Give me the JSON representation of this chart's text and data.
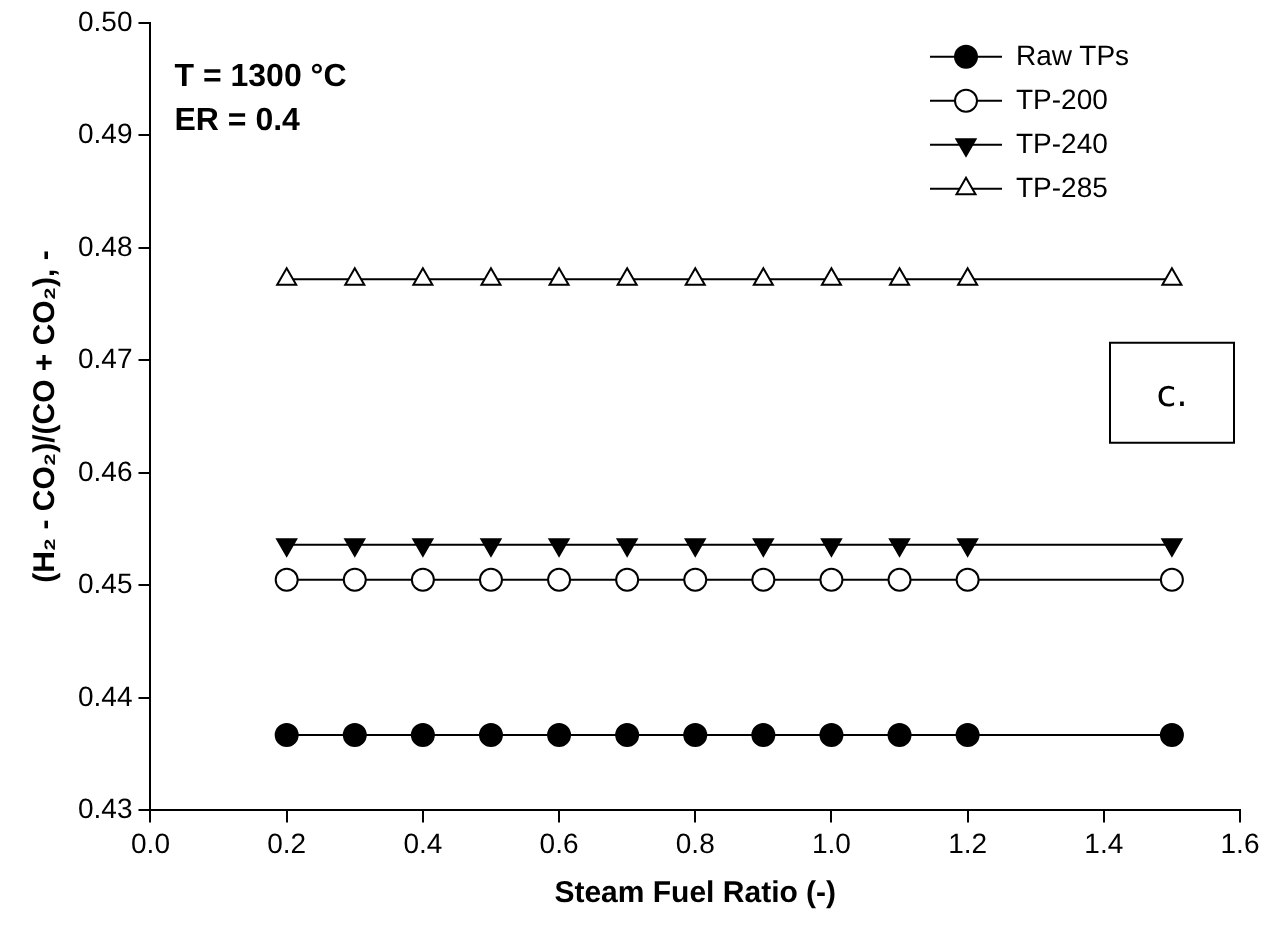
{
  "chart_data": {
    "type": "line",
    "xlabel": "Steam Fuel Ratio (-)",
    "ylabel": "(H₂ - CO₂)/(CO + CO₂), -",
    "x": [
      0.2,
      0.3,
      0.4,
      0.5,
      0.6,
      0.7,
      0.8,
      0.9,
      1.0,
      1.1,
      1.2,
      1.5
    ],
    "xlim": [
      0,
      1.6
    ],
    "xticks": [
      {
        "value": 0,
        "label": "0.0"
      },
      0.2,
      0.4,
      0.6,
      0.8,
      {
        "value": 1,
        "label": "1.0"
      },
      1.2,
      1.4,
      1.6
    ],
    "ylim": [
      0.43,
      0.5
    ],
    "yticks": [
      0.43,
      0.44,
      0.45,
      0.46,
      0.47,
      0.48,
      0.49,
      {
        "value": 0.5,
        "label": "0.50"
      }
    ],
    "grid": false,
    "legend": "top right",
    "line_style": "solid",
    "series": [
      {
        "name": "Raw TPs",
        "color": "#000000",
        "marker": "circle",
        "values": [
          0.4367,
          0.4367,
          0.4367,
          0.4367,
          0.4367,
          0.4367,
          0.4367,
          0.4367,
          0.4367,
          0.4367,
          0.4367,
          0.4367
        ]
      },
      {
        "name": "TP-200",
        "color": "#ffffff",
        "marker": "circle",
        "values": [
          0.4505,
          0.4505,
          0.4505,
          0.4505,
          0.4505,
          0.4505,
          0.4505,
          0.4505,
          0.4505,
          0.4505,
          0.4505,
          0.4505
        ]
      },
      {
        "name": "TP-240",
        "color": "#000000",
        "marker": "triangle-down",
        "values": [
          0.4536,
          0.4536,
          0.4536,
          0.4536,
          0.4536,
          0.4536,
          0.4536,
          0.4536,
          0.4536,
          0.4536,
          0.4536,
          0.4536
        ]
      },
      {
        "name": "TP-285",
        "color": "#ffffff",
        "marker": "triangle",
        "values": [
          0.4772,
          0.4772,
          0.4772,
          0.4772,
          0.4772,
          0.4772,
          0.4772,
          0.4772,
          0.4772,
          0.4772,
          0.4772,
          0.4772
        ]
      }
    ],
    "annotations": [
      "T = 1300 °C",
      "ER = 0.4",
      "c."
    ]
  }
}
